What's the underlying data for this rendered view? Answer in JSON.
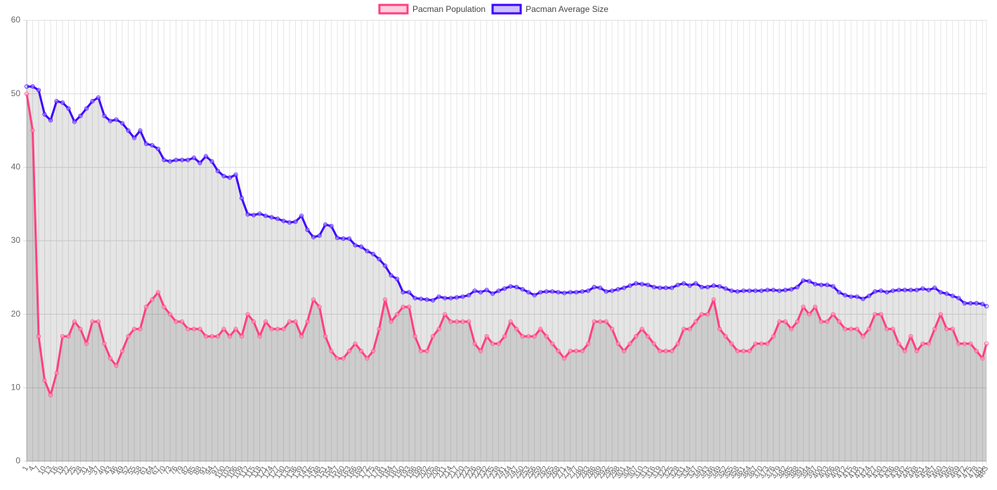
{
  "chart_data": {
    "type": "line",
    "legend": "top",
    "grid": true,
    "area": true,
    "x": [
      1,
      4,
      7,
      10,
      13,
      16,
      19,
      22,
      25,
      28,
      31,
      34,
      37,
      40,
      43,
      46,
      49,
      52,
      55,
      58,
      61,
      64,
      67,
      70,
      73,
      76,
      79,
      82,
      85,
      88,
      91,
      94,
      97,
      100,
      103,
      106,
      109,
      112,
      115,
      118,
      121,
      124,
      127,
      130,
      133,
      136,
      139,
      142,
      145,
      148,
      151,
      154,
      157,
      160,
      163,
      166,
      169,
      172,
      175,
      178,
      181,
      184,
      187,
      190,
      193,
      196,
      199,
      202,
      205,
      208,
      211,
      214,
      217,
      220,
      223,
      226,
      229,
      232,
      235,
      238,
      241,
      244,
      247,
      250,
      253,
      256,
      259,
      262,
      265,
      268,
      271,
      274,
      277,
      280,
      283,
      286,
      289,
      292,
      295,
      298,
      301,
      304,
      307,
      310,
      313,
      316,
      319,
      322,
      325,
      328,
      331,
      334,
      337,
      340,
      343,
      346,
      349,
      352,
      355,
      358,
      361,
      364,
      367,
      370,
      373,
      376,
      379,
      382,
      385,
      388,
      391,
      394,
      397,
      400,
      403,
      406,
      409,
      412,
      415,
      418,
      421,
      424,
      427,
      430,
      433,
      436,
      439,
      442,
      445,
      448,
      451,
      454,
      457,
      460,
      463,
      466,
      469,
      472,
      475,
      478,
      481,
      483
    ],
    "xlim": [
      1,
      483
    ],
    "ylim": [
      0,
      60
    ],
    "yticks": [
      0,
      10,
      20,
      30,
      40,
      50,
      60
    ],
    "series": [
      {
        "name": "Pacman Population",
        "color": "#ff4081",
        "fill": "rgba(0,0,0,0.1)",
        "values": [
          50,
          45,
          17,
          11,
          9,
          12,
          17,
          17,
          19,
          18,
          16,
          19,
          19,
          16,
          14,
          13,
          15,
          17,
          18,
          18,
          21,
          22,
          23,
          21,
          20,
          19,
          19,
          18,
          18,
          18,
          17,
          17,
          17,
          18,
          17,
          18,
          17,
          20,
          19,
          17,
          19,
          18,
          18,
          18,
          19,
          19,
          17,
          19,
          22,
          21,
          17,
          15,
          14,
          14,
          15,
          16,
          15,
          14,
          15,
          18,
          22,
          19,
          20,
          21,
          21,
          17,
          15,
          15,
          17,
          18,
          20,
          19,
          19,
          19,
          19,
          16,
          15,
          17,
          16,
          16,
          17,
          19,
          18,
          17,
          17,
          17,
          18,
          17,
          16,
          15,
          14,
          15,
          15,
          15,
          16,
          19,
          19,
          19,
          18,
          16,
          15,
          16,
          17,
          18,
          17,
          16,
          15,
          15,
          15,
          16,
          18,
          18,
          19,
          20,
          20,
          22,
          18,
          17,
          16,
          15,
          15,
          15,
          16,
          16,
          16,
          17,
          19,
          19,
          18,
          19,
          21,
          20,
          21,
          19,
          19,
          20,
          19,
          18,
          18,
          18,
          17,
          18,
          20,
          20,
          18,
          18,
          16,
          15,
          17,
          15,
          16,
          16,
          18,
          20,
          18,
          18,
          16,
          16,
          16,
          15,
          14,
          16
        ]
      },
      {
        "name": "Pacman Average Size",
        "color": "#3d00ff",
        "fill": "rgba(0,0,0,0.1)",
        "values": [
          51,
          51,
          50.5,
          47.2,
          46.4,
          49,
          48.8,
          48,
          46.2,
          47,
          48,
          49,
          49.5,
          47,
          46.3,
          46.5,
          46,
          45,
          44,
          45,
          43.2,
          43,
          42.5,
          41,
          40.8,
          41,
          41,
          41,
          41.3,
          40.6,
          41.5,
          40.8,
          39.5,
          38.8,
          38.6,
          39,
          35.8,
          33.6,
          33.5,
          33.7,
          33.4,
          33.2,
          33,
          32.7,
          32.5,
          32.6,
          33.4,
          31.5,
          30.5,
          30.7,
          32.2,
          32,
          30.4,
          30.3,
          30.3,
          29.4,
          29.2,
          28.6,
          28.2,
          27.5,
          26.6,
          25.3,
          24.8,
          23,
          23,
          22.2,
          22.1,
          22,
          21.9,
          22.4,
          22.2,
          22.2,
          22.3,
          22.4,
          22.6,
          23.2,
          23,
          23.3,
          22.8,
          23.2,
          23.5,
          23.8,
          23.7,
          23.4,
          23,
          22.6,
          23,
          23.1,
          23.1,
          23,
          22.9,
          23,
          23,
          23.1,
          23.2,
          23.7,
          23.6,
          23.1,
          23.2,
          23.4,
          23.6,
          23.9,
          24.2,
          24.1,
          24,
          23.7,
          23.6,
          23.6,
          23.6,
          24,
          24.2,
          23.9,
          24.2,
          23.7,
          23.7,
          23.9,
          23.8,
          23.5,
          23.2,
          23.1,
          23.2,
          23.2,
          23.2,
          23.2,
          23.3,
          23.3,
          23.2,
          23.3,
          23.4,
          23.7,
          24.6,
          24.5,
          24.1,
          24,
          24,
          23.8,
          23,
          22.6,
          22.4,
          22.4,
          22.1,
          22.5,
          23.1,
          23.2,
          23,
          23.2,
          23.3,
          23.3,
          23.3,
          23.3,
          23.5,
          23.3,
          23.6,
          23,
          22.8,
          22.5,
          22.2,
          21.5,
          21.5,
          21.5,
          21.4,
          21.1
        ]
      }
    ]
  }
}
